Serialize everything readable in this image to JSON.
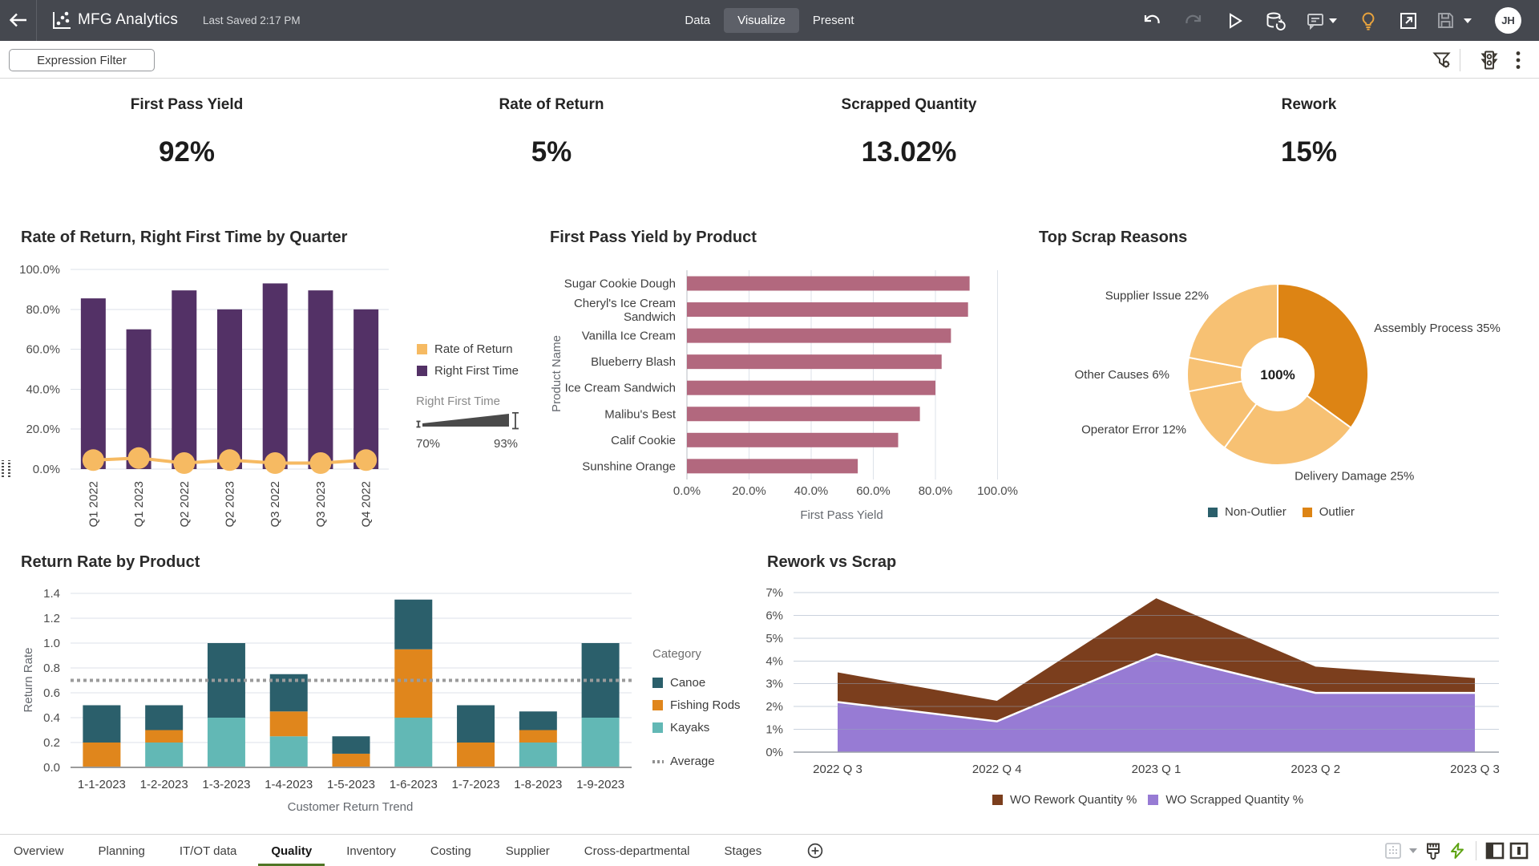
{
  "app": {
    "title": "MFG Analytics",
    "last_saved": "Last Saved 2:17 PM",
    "nav": [
      {
        "label": "Data",
        "active": false
      },
      {
        "label": "Visualize",
        "active": true
      },
      {
        "label": "Present",
        "active": false
      }
    ],
    "topbar_icons": [
      "back-arrow",
      "workbook-logo",
      "undo",
      "redo",
      "play",
      "refresh-data",
      "comments",
      "caret-down",
      "insights-lightbulb",
      "open-in-new-window",
      "save",
      "caret-down"
    ],
    "avatar_initials": "JH"
  },
  "toolbar": {
    "expression_filter_label": "Expression Filter",
    "icons": [
      "filter-settings",
      "traffic-light",
      "kebab-menu"
    ]
  },
  "kpis": [
    {
      "label": "First Pass Yield",
      "value": "92%"
    },
    {
      "label": "Rate of Return",
      "value": "5%"
    },
    {
      "label": "Scrapped Quantity",
      "value": "13.02%"
    },
    {
      "label": "Rework",
      "value": "15%"
    }
  ],
  "ui_colors": {
    "topbar_bg": "#45484f",
    "accent_green": "#4f7626",
    "lightning_green": "#5da312",
    "lightbulb_amber": "#e8a33d",
    "grid_line": "#dde2e9",
    "axis_line": "#9ba1a8",
    "tick_text": "#4d4d4d",
    "category_text": "#3f3f3f",
    "axis_title_text": "#65696f"
  },
  "chart_data": [
    {
      "id": "combo",
      "type": "bar",
      "title": "Rate of Return, Right First Time by Quarter",
      "categories": [
        "Q1 2022",
        "Q1 2023",
        "Q2 2022",
        "Q2 2023",
        "Q3 2022",
        "Q3 2023",
        "Q4 2022"
      ],
      "series": [
        {
          "name": "Rate of Return",
          "type": "line",
          "color": "#f6ba62",
          "values": [
            4.5,
            5.5,
            3,
            4.5,
            3,
            3,
            4.5
          ]
        },
        {
          "name": "Right First Time",
          "type": "bar",
          "color": "#533166",
          "values": [
            85.5,
            70,
            89.5,
            80,
            93,
            89.5,
            80
          ]
        }
      ],
      "ylim": [
        0,
        100
      ],
      "yticks": [
        {
          "v": 0,
          "label": "0.0%"
        },
        {
          "v": 20,
          "label": "20.0%"
        },
        {
          "v": 40,
          "label": "40.0%"
        },
        {
          "v": 60,
          "label": "60.0%"
        },
        {
          "v": 80,
          "label": "80.0%"
        },
        {
          "v": 100,
          "label": "100.0%"
        }
      ],
      "legend_position": "right",
      "slider": {
        "label": "Right First Time",
        "min": "70%",
        "max": "93%"
      }
    },
    {
      "id": "fpy",
      "type": "bar",
      "orientation": "horizontal",
      "title": "First Pass Yield by Product",
      "categories": [
        "Sugar Cookie Dough",
        "Cheryl's Ice Cream Sandwich",
        "Vanilla Ice Cream",
        "Blueberry Blash",
        "Ice Cream Sandwich",
        "Malibu's Best",
        "Calif Cookie",
        "Sunshine Orange"
      ],
      "values": [
        91,
        90.5,
        85,
        82,
        80,
        75,
        68,
        55
      ],
      "color": "#b2687e",
      "xlim": [
        0,
        100
      ],
      "xticks": [
        {
          "v": 0,
          "label": "0.0%"
        },
        {
          "v": 20,
          "label": "20.0%"
        },
        {
          "v": 40,
          "label": "40.0%"
        },
        {
          "v": 60,
          "label": "60.0%"
        },
        {
          "v": 80,
          "label": "80.0%"
        },
        {
          "v": 100,
          "label": "100.0%"
        }
      ],
      "xlabel": "First Pass Yield",
      "ylabel": "Product Name"
    },
    {
      "id": "scrap",
      "type": "pie",
      "title": "Top Scrap Reasons",
      "slices": [
        {
          "label": "Assembly Process",
          "pct": 35,
          "color": "#dd8414"
        },
        {
          "label": "Delivery Damage",
          "pct": 25,
          "color": "#f7c173"
        },
        {
          "label": "Operator Error",
          "pct": 12,
          "color": "#f7c173"
        },
        {
          "label": "Other Causes",
          "pct": 6,
          "color": "#f7c173"
        },
        {
          "label": "Supplier Issue",
          "pct": 22,
          "color": "#f7c173"
        }
      ],
      "center_label": "100%",
      "legend": [
        {
          "label": "Non-Outlier",
          "color": "#2b5f6b"
        },
        {
          "label": "Outlier",
          "color": "#dd8414"
        }
      ]
    },
    {
      "id": "returnrate",
      "type": "bar",
      "stacked": true,
      "title": "Return Rate by Product",
      "categories": [
        "1-1-2023",
        "1-2-2023",
        "1-3-2023",
        "1-4-2023",
        "1-5-2023",
        "1-6-2023",
        "1-7-2023",
        "1-8-2023",
        "1-9-2023"
      ],
      "legend_title": "Category",
      "series": [
        {
          "name": "Canoe",
          "color": "#2b5f6b",
          "values": [
            0.3,
            0.2,
            0.6,
            0.3,
            0.14,
            0.4,
            0.3,
            0.15,
            0.6
          ]
        },
        {
          "name": "Fishing Rods",
          "color": "#e0861c",
          "values": [
            0.2,
            0.1,
            0,
            0.2,
            0.11,
            0.55,
            0.2,
            0.1,
            0
          ]
        },
        {
          "name": "Kayaks",
          "color": "#62b8b5",
          "values": [
            0,
            0.2,
            0.4,
            0.25,
            0,
            0.4,
            0,
            0.2,
            0.4
          ]
        }
      ],
      "average": {
        "label": "Average",
        "value": 0.7
      },
      "ylim": [
        0,
        1.4
      ],
      "yticks": [
        {
          "v": 0,
          "label": "0.0"
        },
        {
          "v": 0.2,
          "label": "0.2"
        },
        {
          "v": 0.4,
          "label": "0.4"
        },
        {
          "v": 0.6,
          "label": "0.6"
        },
        {
          "v": 0.8,
          "label": "0.8"
        },
        {
          "v": 1.0,
          "label": "1.0"
        },
        {
          "v": 1.2,
          "label": "1.2"
        },
        {
          "v": 1.4,
          "label": "1.4"
        }
      ],
      "ylabel": "Return Rate",
      "xlabel": "Customer Return Trend"
    },
    {
      "id": "rework",
      "type": "area",
      "stacked": true,
      "title": "Rework vs Scrap",
      "categories": [
        "2022 Q 3",
        "2022 Q 4",
        "2023 Q 1",
        "2023 Q 2",
        "2023 Q 3"
      ],
      "series": [
        {
          "name": "WO Rework Quantity %",
          "color": "#7b3e1d",
          "values": [
            1.3,
            0.9,
            2.45,
            1.15,
            0.65
          ]
        },
        {
          "name": "WO Scrapped Quantity %",
          "color": "#977bd4",
          "values": [
            2.2,
            1.35,
            4.3,
            2.6,
            2.6
          ]
        }
      ],
      "ylim": [
        0,
        7
      ],
      "yticks": [
        {
          "v": 0,
          "label": "0%"
        },
        {
          "v": 1,
          "label": "1%"
        },
        {
          "v": 2,
          "label": "2%"
        },
        {
          "v": 3,
          "label": "3%"
        },
        {
          "v": 4,
          "label": "4%"
        },
        {
          "v": 5,
          "label": "5%"
        },
        {
          "v": 6,
          "label": "6%"
        },
        {
          "v": 7,
          "label": "7%"
        }
      ]
    }
  ],
  "tabs": {
    "items": [
      "Overview",
      "Planning",
      "IT/OT data",
      "Quality",
      "Inventory",
      "Costing",
      "Supplier",
      "Cross-departmental",
      "Stages"
    ],
    "active_index": 3,
    "right_icons": [
      "canvas-layout",
      "caret-down",
      "paintbrush",
      "lightning",
      "panel-left",
      "panel-right"
    ]
  }
}
